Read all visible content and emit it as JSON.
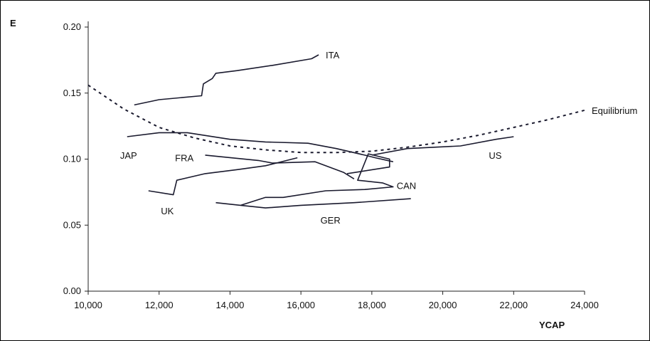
{
  "chart_data": {
    "type": "line",
    "xlabel": "YCAP",
    "ylabel": "E",
    "xlim": [
      10000,
      24000
    ],
    "ylim": [
      0.0,
      0.2
    ],
    "x_ticks": [
      10000,
      12000,
      14000,
      16000,
      18000,
      20000,
      22000,
      24000
    ],
    "x_tick_labels": [
      "10,000",
      "12,000",
      "14,000",
      "16,000",
      "18,000",
      "20,000",
      "22,000",
      "24,000"
    ],
    "y_ticks": [
      0.0,
      0.05,
      0.1,
      0.15,
      0.2
    ],
    "y_tick_labels": [
      "0.00",
      "0.05",
      "0.10",
      "0.15",
      "0.20"
    ],
    "grid": false,
    "series": [
      {
        "name": "ITA",
        "style": "solid",
        "points": [
          [
            11300,
            0.141
          ],
          [
            12000,
            0.145
          ],
          [
            13200,
            0.148
          ],
          [
            13250,
            0.157
          ],
          [
            13500,
            0.161
          ],
          [
            13600,
            0.165
          ],
          [
            14200,
            0.167
          ],
          [
            15200,
            0.171
          ],
          [
            16300,
            0.176
          ],
          [
            16500,
            0.179
          ]
        ]
      },
      {
        "name": "JAP",
        "style": "solid",
        "points": [
          [
            11100,
            0.117
          ],
          [
            12000,
            0.12
          ],
          [
            12800,
            0.12
          ],
          [
            14000,
            0.115
          ],
          [
            15000,
            0.113
          ],
          [
            16200,
            0.112
          ],
          [
            17000,
            0.108
          ],
          [
            17800,
            0.103
          ],
          [
            18100,
            0.101
          ],
          [
            18600,
            0.098
          ]
        ]
      },
      {
        "name": "FRA",
        "style": "solid",
        "points": [
          [
            13300,
            0.103
          ],
          [
            14800,
            0.099
          ],
          [
            15200,
            0.097
          ],
          [
            16400,
            0.098
          ],
          [
            17200,
            0.09
          ],
          [
            17500,
            0.085
          ]
        ]
      },
      {
        "name": "UK",
        "style": "solid",
        "points": [
          [
            11700,
            0.076
          ],
          [
            12400,
            0.073
          ],
          [
            12500,
            0.084
          ],
          [
            13300,
            0.089
          ],
          [
            14200,
            0.092
          ],
          [
            15000,
            0.095
          ],
          [
            15600,
            0.099
          ],
          [
            15900,
            0.101
          ]
        ]
      },
      {
        "name": "CAN",
        "style": "solid",
        "points": [
          [
            17300,
            0.089
          ],
          [
            18500,
            0.094
          ],
          [
            18500,
            0.1
          ],
          [
            17900,
            0.104
          ],
          [
            17600,
            0.084
          ],
          [
            18300,
            0.082
          ],
          [
            18600,
            0.079
          ],
          [
            17800,
            0.077
          ],
          [
            16700,
            0.076
          ],
          [
            15500,
            0.071
          ],
          [
            15000,
            0.071
          ],
          [
            14300,
            0.065
          ]
        ]
      },
      {
        "name": "GER",
        "style": "solid",
        "points": [
          [
            13600,
            0.067
          ],
          [
            14300,
            0.065
          ],
          [
            15000,
            0.063
          ],
          [
            16000,
            0.065
          ],
          [
            17500,
            0.067
          ],
          [
            19100,
            0.07
          ]
        ]
      },
      {
        "name": "US",
        "style": "solid",
        "points": [
          [
            18000,
            0.103
          ],
          [
            19000,
            0.108
          ],
          [
            20500,
            0.11
          ],
          [
            21500,
            0.115
          ],
          [
            22000,
            0.117
          ]
        ]
      },
      {
        "name": "Equilibrium",
        "style": "dashed",
        "points": [
          [
            10000,
            0.156
          ],
          [
            11000,
            0.138
          ],
          [
            12000,
            0.124
          ],
          [
            13000,
            0.116
          ],
          [
            14000,
            0.11
          ],
          [
            15000,
            0.107
          ],
          [
            16000,
            0.105
          ],
          [
            17000,
            0.105
          ],
          [
            18000,
            0.106
          ],
          [
            19000,
            0.109
          ],
          [
            20000,
            0.113
          ],
          [
            21000,
            0.118
          ],
          [
            22000,
            0.124
          ],
          [
            23000,
            0.13
          ],
          [
            24000,
            0.137
          ]
        ]
      }
    ],
    "labels": [
      {
        "text": "ITA",
        "x": 16700,
        "y": 0.179
      },
      {
        "text": "JAP",
        "x": 10900,
        "y": 0.103
      },
      {
        "text": "FRA",
        "x": 12450,
        "y": 0.101
      },
      {
        "text": "UK",
        "x": 12050,
        "y": 0.061
      },
      {
        "text": "CAN",
        "x": 18700,
        "y": 0.08
      },
      {
        "text": "GER",
        "x": 16550,
        "y": 0.054
      },
      {
        "text": "US",
        "x": 21300,
        "y": 0.103
      },
      {
        "text": "Equilibrium",
        "x": 24200,
        "y": 0.137
      }
    ]
  },
  "colors": {
    "line": "#1a1a2e",
    "axis": "#222222"
  }
}
